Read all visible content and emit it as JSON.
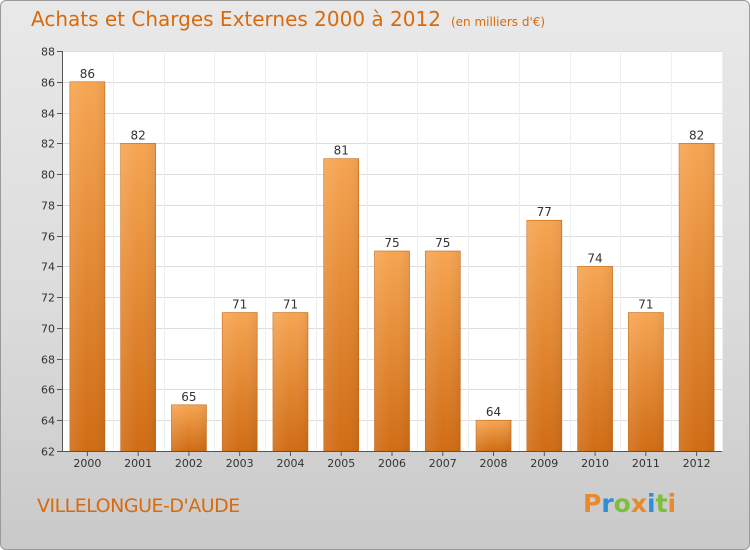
{
  "header": {
    "title": "Achats et Charges Externes 2000 à 2012",
    "unit": "(en milliers d'€)"
  },
  "footer": {
    "place": "VILLELONGUE-D'AUDE",
    "brand": "Proxiti",
    "brand_colors": [
      "#e8892b",
      "#2f8fd6",
      "#7cbf3a",
      "#e8892b",
      "#2f8fd6",
      "#7cbf3a",
      "#e8892b"
    ]
  },
  "colors": {
    "bar_light": "#f6a552",
    "bar_dark": "#d06c14",
    "title": "#d96a0c",
    "axis": "#555555"
  },
  "chart_data": {
    "type": "bar",
    "categories": [
      "2000",
      "2001",
      "2002",
      "2003",
      "2004",
      "2005",
      "2006",
      "2007",
      "2008",
      "2009",
      "2010",
      "2011",
      "2012"
    ],
    "values": [
      86,
      82,
      65,
      71,
      71,
      81,
      75,
      75,
      64,
      77,
      74,
      71,
      82
    ],
    "value_labels": [
      "86",
      "82",
      "65",
      "71",
      "71",
      "81",
      "75",
      "75",
      "64",
      "77",
      "74",
      "71",
      "82"
    ],
    "ylim": [
      62,
      88
    ],
    "yticks": [
      62,
      64,
      66,
      68,
      70,
      72,
      74,
      76,
      78,
      80,
      82,
      84,
      86,
      88
    ],
    "grid": true,
    "title": "Achats et Charges Externes 2000 à 2012",
    "xlabel": "",
    "ylabel": ""
  }
}
